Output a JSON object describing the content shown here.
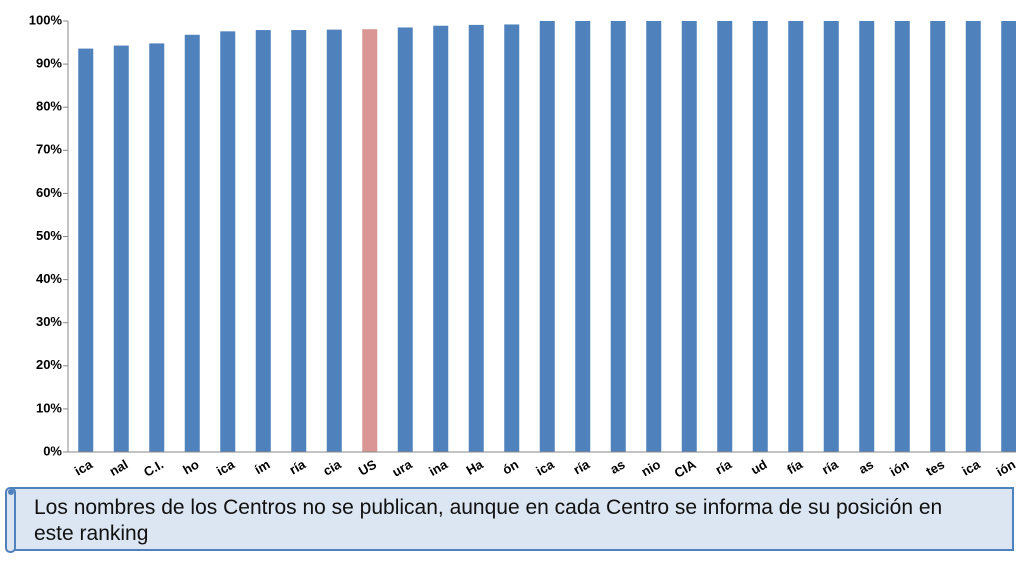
{
  "chart_data": {
    "type": "bar",
    "categories": [
      "ica",
      "nal",
      "C.I.",
      "ho",
      "ica",
      "ím",
      "ría",
      "cia",
      "US",
      "ura",
      "ina",
      "Ha",
      "ón",
      "ica",
      "ría",
      "as",
      "nio",
      "CIA",
      "ría",
      "ud",
      "fía",
      "ría",
      "as",
      "ión",
      "tes",
      "ica",
      "ión"
    ],
    "values": [
      93.6,
      94.3,
      94.8,
      96.8,
      97.6,
      97.9,
      97.9,
      98.0,
      98.1,
      98.5,
      98.9,
      99.1,
      99.2,
      100,
      100,
      100,
      100,
      100,
      100,
      100,
      100,
      100,
      100,
      100,
      100,
      100,
      100
    ],
    "colors": [
      "#4f81bd",
      "#4f81bd",
      "#4f81bd",
      "#4f81bd",
      "#4f81bd",
      "#4f81bd",
      "#4f81bd",
      "#4f81bd",
      "#d99694",
      "#4f81bd",
      "#4f81bd",
      "#4f81bd",
      "#4f81bd",
      "#4f81bd",
      "#4f81bd",
      "#4f81bd",
      "#4f81bd",
      "#4f81bd",
      "#4f81bd",
      "#4f81bd",
      "#4f81bd",
      "#4f81bd",
      "#4f81bd",
      "#4f81bd",
      "#4f81bd",
      "#4f81bd",
      "#4f81bd"
    ],
    "ylim": [
      0,
      100
    ],
    "yticks": [
      {
        "value": 0,
        "label": "0%"
      },
      {
        "value": 10,
        "label": "10%"
      },
      {
        "value": 20,
        "label": "20%"
      },
      {
        "value": 30,
        "label": "30%"
      },
      {
        "value": 40,
        "label": "40%"
      },
      {
        "value": 50,
        "label": "50%"
      },
      {
        "value": 60,
        "label": "60%"
      },
      {
        "value": 70,
        "label": "70%"
      },
      {
        "value": 80,
        "label": "80%"
      },
      {
        "value": 90,
        "label": "90%"
      },
      {
        "value": 100,
        "label": "100%"
      }
    ],
    "grid": false,
    "annotation": "Los nombres de los Centros no se publican, aunque en cada Centro se informa de su posición en este ranking"
  }
}
